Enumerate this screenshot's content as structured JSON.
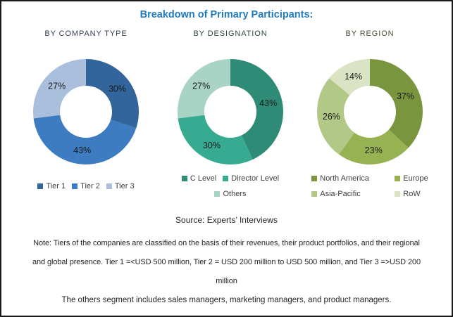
{
  "title": "Breakdown of Primary Participants:",
  "title_color": "#1F7AC2",
  "chart_data": [
    {
      "type": "pie",
      "subtype": "donut",
      "title": "BY COMPANY TYPE",
      "subtitle_color": "#333F50",
      "labels": [
        "Tier 1",
        "Tier 2",
        "Tier 3"
      ],
      "values": [
        30,
        43,
        27
      ],
      "colors": [
        "#31659B",
        "#3D7CC0",
        "#AABFDC"
      ],
      "legend_position": "bottom",
      "legend_columns": 1,
      "start_angle": "top",
      "direction": "clockwise"
    },
    {
      "type": "pie",
      "subtype": "donut",
      "title": "BY DESIGNATION",
      "subtitle_color": "#2B4A44",
      "labels": [
        "C Level",
        "Director Level",
        "Others"
      ],
      "values": [
        43,
        30,
        27
      ],
      "colors": [
        "#2E8B76",
        "#36AB91",
        "#A9D3C5"
      ],
      "legend_position": "bottom",
      "legend_columns": 1,
      "start_angle": "top",
      "direction": "clockwise"
    },
    {
      "type": "pie",
      "subtype": "donut",
      "title": "BY REGION",
      "subtitle_color": "#4C4D34",
      "labels": [
        "North America",
        "Europe",
        "Asia-Pacific",
        "RoW"
      ],
      "values": [
        37,
        23,
        26,
        14
      ],
      "colors": [
        "#79953E",
        "#97B351",
        "#B2C887",
        "#DAE3C3"
      ],
      "legend_position": "bottom",
      "legend_columns": 2,
      "start_angle": "top",
      "direction": "clockwise"
    }
  ],
  "source": "Source: Experts’ Interviews",
  "note_lines": [
    "Note: Tiers of the companies are classified on the basis of their revenues, their product portfolios, and their regional",
    "and global presence. Tier 1 =<USD 500 million, Tier 2 = USD 200 million to USD 500 million, and Tier 3 =>USD 200",
    "million"
  ],
  "others_note": "The others segment includes sales managers, marketing managers, and product managers."
}
